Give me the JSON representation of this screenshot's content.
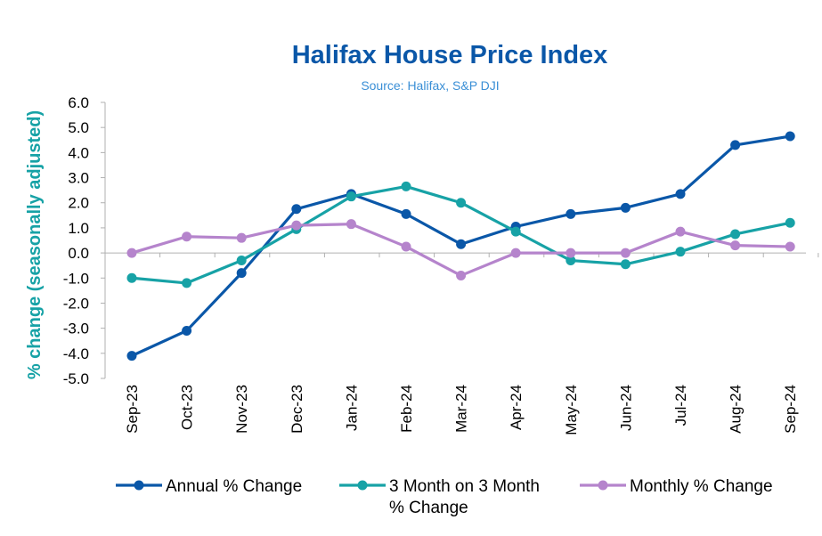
{
  "chart_data": {
    "type": "line",
    "title": "Halifax House Price Index",
    "subtitle": "Source: Halifax, S&P DJI",
    "xlabel": "",
    "ylabel": "% change (seasonally adjusted)",
    "ylim": [
      -5.0,
      6.0
    ],
    "yticks": [
      "6.0",
      "5.0",
      "4.0",
      "3.0",
      "2.0",
      "1.0",
      "0.0",
      "-1.0",
      "-2.0",
      "-3.0",
      "-4.0",
      "-5.0"
    ],
    "categories": [
      "Sep-23",
      "Oct-23",
      "Nov-23",
      "Dec-23",
      "Jan-24",
      "Feb-24",
      "Mar-24",
      "Apr-24",
      "May-24",
      "Jun-24",
      "Jul-24",
      "Aug-24",
      "Sep-24"
    ],
    "grid": false,
    "legend_position": "bottom",
    "series": [
      {
        "name": "Annual % Change",
        "color": "#0a57a8",
        "values": [
          -4.1,
          -3.1,
          -0.8,
          1.75,
          2.35,
          1.55,
          0.35,
          1.05,
          1.55,
          1.8,
          2.35,
          4.3,
          4.65
        ]
      },
      {
        "name": "3 Month on 3 Month % Change",
        "legend_lines": [
          "3 Month on 3 Month",
          "% Change"
        ],
        "color": "#17a2a6",
        "values": [
          -1.0,
          -1.2,
          -0.3,
          0.95,
          2.25,
          2.65,
          2.0,
          0.85,
          -0.3,
          -0.45,
          0.05,
          0.75,
          1.2
        ]
      },
      {
        "name": "Monthly % Change",
        "color": "#b584cc",
        "values": [
          0.0,
          0.65,
          0.6,
          1.1,
          1.15,
          0.25,
          -0.9,
          0.0,
          0.0,
          0.0,
          0.85,
          0.3,
          0.25
        ]
      }
    ]
  },
  "colors": {
    "title": "#0a57a8",
    "subtitle": "#3a8fd6",
    "ylabel": "#17a2a6",
    "axis": "#b0b0b0"
  }
}
